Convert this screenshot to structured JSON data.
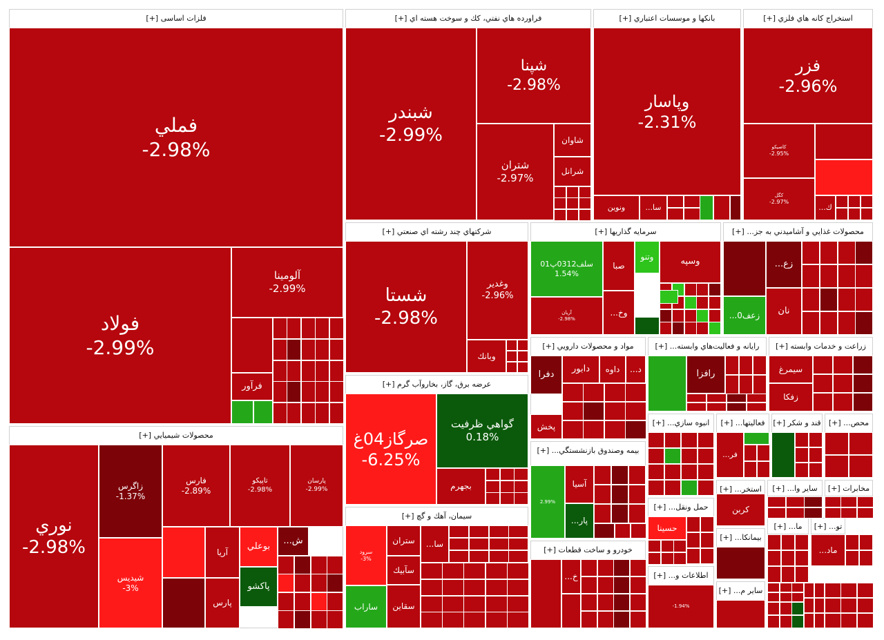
{
  "chart_data": {
    "type": "treemap",
    "title": "",
    "colors": {
      "red": "#b5070d",
      "bright_red": "#ff1a1a",
      "dark_red": "#7c0308",
      "green": "#24a81a",
      "dark_green": "#0b5a0b",
      "bright_green": "#2ec41c"
    },
    "sectors": [
      {
        "name": "فلزات اساسی [+]",
        "stocks": [
          {
            "name": "فملي",
            "change": "-2.98%"
          },
          {
            "name": "فولاد",
            "change": "-2.99%"
          },
          {
            "name": "آلومينا",
            "change": "-2.99%"
          },
          {
            "name": "فرآور",
            "change": ""
          }
        ]
      },
      {
        "name": "فراورده هاي نفتي، كك و سوخت هسته اي [+]",
        "stocks": [
          {
            "name": "شبندر",
            "change": "-2.99%"
          },
          {
            "name": "شپنا",
            "change": "-2.98%"
          },
          {
            "name": "شتران",
            "change": "-2.97%"
          },
          {
            "name": "شاوان",
            "change": ""
          },
          {
            "name": "شرانل",
            "change": ""
          }
        ]
      },
      {
        "name": "بانكها و موسسات اعتباري [+]",
        "stocks": [
          {
            "name": "وپاسار",
            "change": "-2.31%"
          },
          {
            "name": "ونوين",
            "change": ""
          },
          {
            "name": "سا...",
            "change": ""
          }
        ]
      },
      {
        "name": "استخراج كانه هاي فلزي [+]",
        "stocks": [
          {
            "name": "فزر",
            "change": "-2.96%"
          },
          {
            "name": "كاصيكو",
            "change": "-2.95%"
          },
          {
            "name": "كگل",
            "change": "-2.97%"
          },
          {
            "name": "ك...",
            "change": ""
          }
        ]
      },
      {
        "name": "شركتهاي چند رشته اي صنعتي [+]",
        "stocks": [
          {
            "name": "شستا",
            "change": "-2.98%"
          },
          {
            "name": "وغدير",
            "change": "-2.96%"
          },
          {
            "name": "وبانك",
            "change": ""
          }
        ]
      },
      {
        "name": "سرمايه گذاريها [+]",
        "stocks": [
          {
            "name": "سلف0312پ01",
            "change": "1.54%"
          },
          {
            "name": "صبا",
            "change": ""
          },
          {
            "name": "وتنو",
            "change": ""
          },
          {
            "name": "وسپه",
            "change": ""
          },
          {
            "name": "وخ...",
            "change": ""
          },
          {
            "name": "آريان",
            "change": "-2.98%"
          }
        ]
      },
      {
        "name": "محصولات غذايي و آشاميدني به جز... [+]",
        "stocks": [
          {
            "name": "زع...",
            "change": ""
          },
          {
            "name": "زعف0...",
            "change": ""
          },
          {
            "name": "نان",
            "change": ""
          }
        ]
      },
      {
        "name": "عرضه برق، گاز، بخاروآب گرم [+]",
        "stocks": [
          {
            "name": "صرگاز04غ",
            "change": "-6.25%"
          },
          {
            "name": "گواهي ظرفيت",
            "change": "0.18%"
          },
          {
            "name": "بجهرم",
            "change": ""
          }
        ]
      },
      {
        "name": "مواد و محصولات دارويي [+]",
        "stocks": [
          {
            "name": "دفرا",
            "change": ""
          },
          {
            "name": "دابور",
            "change": ""
          },
          {
            "name": "داوه",
            "change": ""
          },
          {
            "name": "د...",
            "change": ""
          },
          {
            "name": "پخش",
            "change": ""
          }
        ]
      },
      {
        "name": "رايانه و فعاليت‌هاي وابسته... [+]",
        "stocks": [
          {
            "name": "رافزا",
            "change": ""
          }
        ]
      },
      {
        "name": "زراعت و خدمات وابسته [+]",
        "stocks": [
          {
            "name": "سيمرغ",
            "change": ""
          },
          {
            "name": "زفكا",
            "change": ""
          }
        ]
      },
      {
        "name": "محصولات شيميايي [+]",
        "stocks": [
          {
            "name": "نوري",
            "change": "-2.98%"
          },
          {
            "name": "زاگرس",
            "change": "-1.37%"
          },
          {
            "name": "شيديس",
            "change": "-3%"
          },
          {
            "name": "فارس",
            "change": "-2.89%"
          },
          {
            "name": "تاپيكو",
            "change": "-2.98%"
          },
          {
            "name": "پارسان",
            "change": "-2.99%"
          },
          {
            "name": "آريا",
            "change": ""
          },
          {
            "name": "بوعلي",
            "change": ""
          },
          {
            "name": "پارس",
            "change": ""
          },
          {
            "name": "پاكشو",
            "change": ""
          },
          {
            "name": "ش...",
            "change": ""
          }
        ]
      },
      {
        "name": "سيمان، آهك و گچ [+]",
        "stocks": [
          {
            "name": "ستران",
            "change": ""
          },
          {
            "name": "سا...",
            "change": ""
          },
          {
            "name": "سآبيك",
            "change": ""
          },
          {
            "name": "ساراب",
            "change": ""
          },
          {
            "name": "سقاين",
            "change": ""
          },
          {
            "name": "سرود",
            "change": "-3%"
          }
        ]
      },
      {
        "name": "بيمه وصندوق بازنشستگي... [+]",
        "stocks": [
          {
            "name": "آسيا",
            "change": ""
          },
          {
            "name": "پار...",
            "change": ""
          },
          {
            "name": "",
            "change": "2.99%"
          }
        ]
      },
      {
        "name": "خودرو و ساخت قطعات [+]",
        "stocks": [
          {
            "name": "خ...",
            "change": ""
          }
        ]
      },
      {
        "name": "انبوه سازي... [+]",
        "stocks": []
      },
      {
        "name": "حمل ونقل... [+]",
        "stocks": [
          {
            "name": "حسينا",
            "change": ""
          }
        ]
      },
      {
        "name": "اطلاعات و... [+]",
        "stocks": [
          {
            "name": "",
            "change": "-1.94%"
          }
        ]
      },
      {
        "name": "فعاليتها... [+]",
        "stocks": [
          {
            "name": "فر...",
            "change": ""
          }
        ]
      },
      {
        "name": "قند و شكر [+]",
        "stocks": []
      },
      {
        "name": "محص... [+]",
        "stocks": []
      },
      {
        "name": "استخر... [+]",
        "stocks": [
          {
            "name": "كربن",
            "change": ""
          }
        ]
      },
      {
        "name": "ساير وا... [+]",
        "stocks": []
      },
      {
        "name": "مخابرات [+]",
        "stocks": []
      },
      {
        "name": "بيمانكا... [+]",
        "stocks": []
      },
      {
        "name": "ما... [+]",
        "stocks": []
      },
      {
        "name": "تو... [+]",
        "stocks": [
          {
            "name": "ماد...",
            "change": ""
          }
        ]
      },
      {
        "name": "ساير م... [+]",
        "stocks": []
      }
    ]
  }
}
